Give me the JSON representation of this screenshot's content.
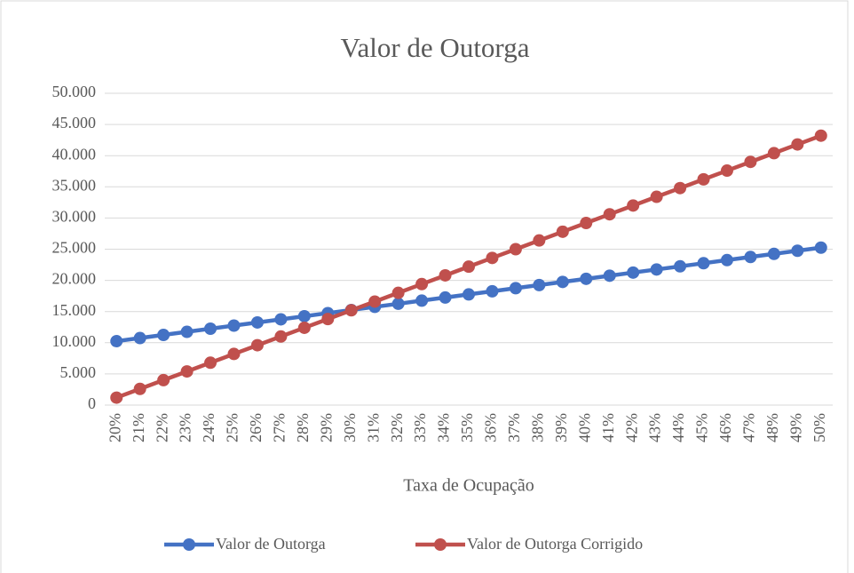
{
  "chart_data": {
    "type": "line",
    "title": "Valor de Outorga",
    "x_label": "Taxa de Ocupação",
    "categories": [
      "20%",
      "21%",
      "22%",
      "23%",
      "24%",
      "25%",
      "26%",
      "27%",
      "28%",
      "29%",
      "30%",
      "31%",
      "32%",
      "33%",
      "34%",
      "35%",
      "36%",
      "37%",
      "38%",
      "39%",
      "40%",
      "41%",
      "42%",
      "43%",
      "44%",
      "45%",
      "46%",
      "47%",
      "48%",
      "49%",
      "50%"
    ],
    "series": [
      {
        "name": "Valor de Outorga",
        "color": "#4472c4",
        "values": [
          10250,
          10750,
          11250,
          11750,
          12250,
          12750,
          13250,
          13750,
          14250,
          14750,
          15250,
          15750,
          16250,
          16750,
          17250,
          17750,
          18250,
          18750,
          19250,
          19750,
          20250,
          20750,
          21250,
          21750,
          22250,
          22750,
          23250,
          23750,
          24250,
          24750,
          25250
        ]
      },
      {
        "name": "Valor de Outorga Corrigido",
        "color": "#c0504d",
        "values": [
          1200,
          2600,
          4000,
          5400,
          6800,
          8200,
          9600,
          11000,
          12400,
          13800,
          15200,
          16600,
          18000,
          19400,
          20800,
          22200,
          23600,
          25000,
          26400,
          27800,
          29200,
          30600,
          32000,
          33400,
          34800,
          36200,
          37600,
          39000,
          40400,
          41800,
          43200
        ]
      }
    ],
    "ylim": [
      0,
      50000
    ],
    "yticks": [
      0,
      {
        "value": 5000,
        "label": "5.000"
      },
      {
        "value": 10000,
        "label": "10.000"
      },
      {
        "value": 15000,
        "label": "15.000"
      },
      {
        "value": 20000,
        "label": "20.000"
      },
      {
        "value": 25000,
        "label": "25.000"
      },
      {
        "value": 30000,
        "label": "30.000"
      },
      {
        "value": 35000,
        "label": "35.000"
      },
      {
        "value": 40000,
        "label": "40.000"
      },
      {
        "value": 45000,
        "label": "45.000"
      },
      {
        "value": 50000,
        "label": "50.000"
      }
    ],
    "grid": true,
    "legend": "bottom"
  }
}
